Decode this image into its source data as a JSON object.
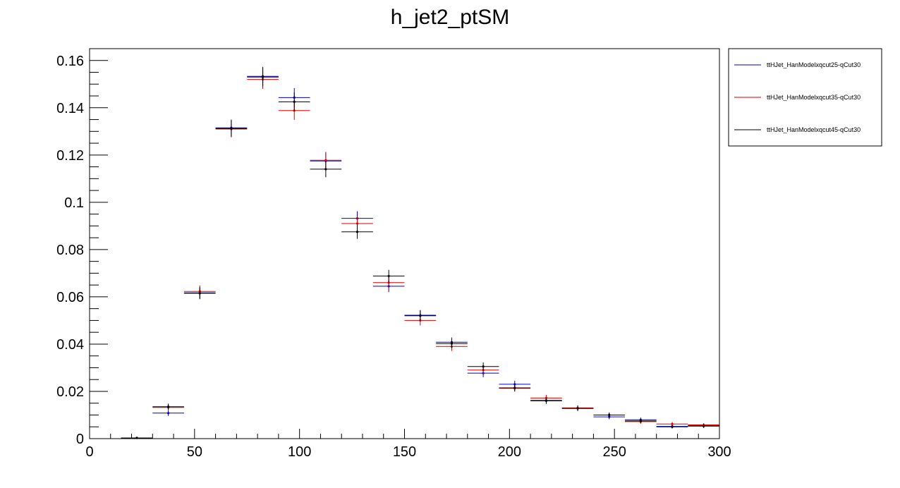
{
  "chart_data": {
    "type": "scatter",
    "title": "h_jet2_ptSM",
    "xlabel": "",
    "ylabel": "",
    "xlim": [
      0,
      300
    ],
    "ylim": [
      0,
      0.165
    ],
    "grid": false,
    "legend_position": "top-right",
    "x_ticks": [
      "0",
      "50",
      "100",
      "150",
      "200",
      "250",
      "300"
    ],
    "y_ticks": [
      "0",
      "0.02",
      "0.04",
      "0.06",
      "0.08",
      "0.1",
      "0.12",
      "0.14",
      "0.16"
    ],
    "bin_width": 15,
    "x": [
      22.5,
      37.5,
      52.5,
      67.5,
      82.5,
      97.5,
      112.5,
      127.5,
      142.5,
      157.5,
      172.5,
      187.5,
      202.5,
      217.5,
      232.5,
      247.5,
      262.5,
      277.5,
      292.5
    ],
    "series": [
      {
        "name": "ttHJet_HanModelxqcut25-qCut30",
        "color": "#0000cc",
        "values": [
          0.0003,
          0.0108,
          0.0617,
          0.1315,
          0.1533,
          0.1443,
          0.1175,
          0.0932,
          0.0645,
          0.0522,
          0.0408,
          0.0277,
          0.023,
          0.0162,
          0.0128,
          0.0092,
          0.008,
          0.0052,
          0.0055
        ],
        "errors": [
          0.0002,
          0.0012,
          0.0025,
          0.0035,
          0.004,
          0.004,
          0.0035,
          0.003,
          0.0025,
          0.0022,
          0.002,
          0.0017,
          0.0015,
          0.0013,
          0.0011,
          0.001,
          0.0009,
          0.0008,
          0.0008
        ]
      },
      {
        "name": "ttHJet_HanModelxqcut35-qCut30",
        "color": "#dd0000",
        "values": [
          0.0003,
          0.0132,
          0.0623,
          0.131,
          0.152,
          0.1388,
          0.1178,
          0.091,
          0.066,
          0.05,
          0.039,
          0.029,
          0.0213,
          0.0172,
          0.013,
          0.01,
          0.0072,
          0.0062,
          0.0058
        ],
        "errors": [
          0.0002,
          0.0013,
          0.0025,
          0.0035,
          0.004,
          0.0039,
          0.0035,
          0.003,
          0.0025,
          0.0021,
          0.0019,
          0.0017,
          0.0014,
          0.0013,
          0.0011,
          0.001,
          0.0009,
          0.0008,
          0.0008
        ]
      },
      {
        "name": "ttHJet_HanModelxqcut45-qCut30",
        "color": "#000000",
        "values": [
          0.0003,
          0.0135,
          0.0615,
          0.1312,
          0.153,
          0.1425,
          0.114,
          0.0875,
          0.0688,
          0.052,
          0.0402,
          0.0305,
          0.0215,
          0.016,
          0.0128,
          0.01,
          0.0075,
          0.005,
          0.0053
        ],
        "errors": [
          0.0002,
          0.0013,
          0.0025,
          0.0035,
          0.004,
          0.004,
          0.0034,
          0.003,
          0.0026,
          0.0022,
          0.002,
          0.0017,
          0.0015,
          0.0013,
          0.0011,
          0.001,
          0.0009,
          0.0007,
          0.0008
        ]
      }
    ]
  }
}
